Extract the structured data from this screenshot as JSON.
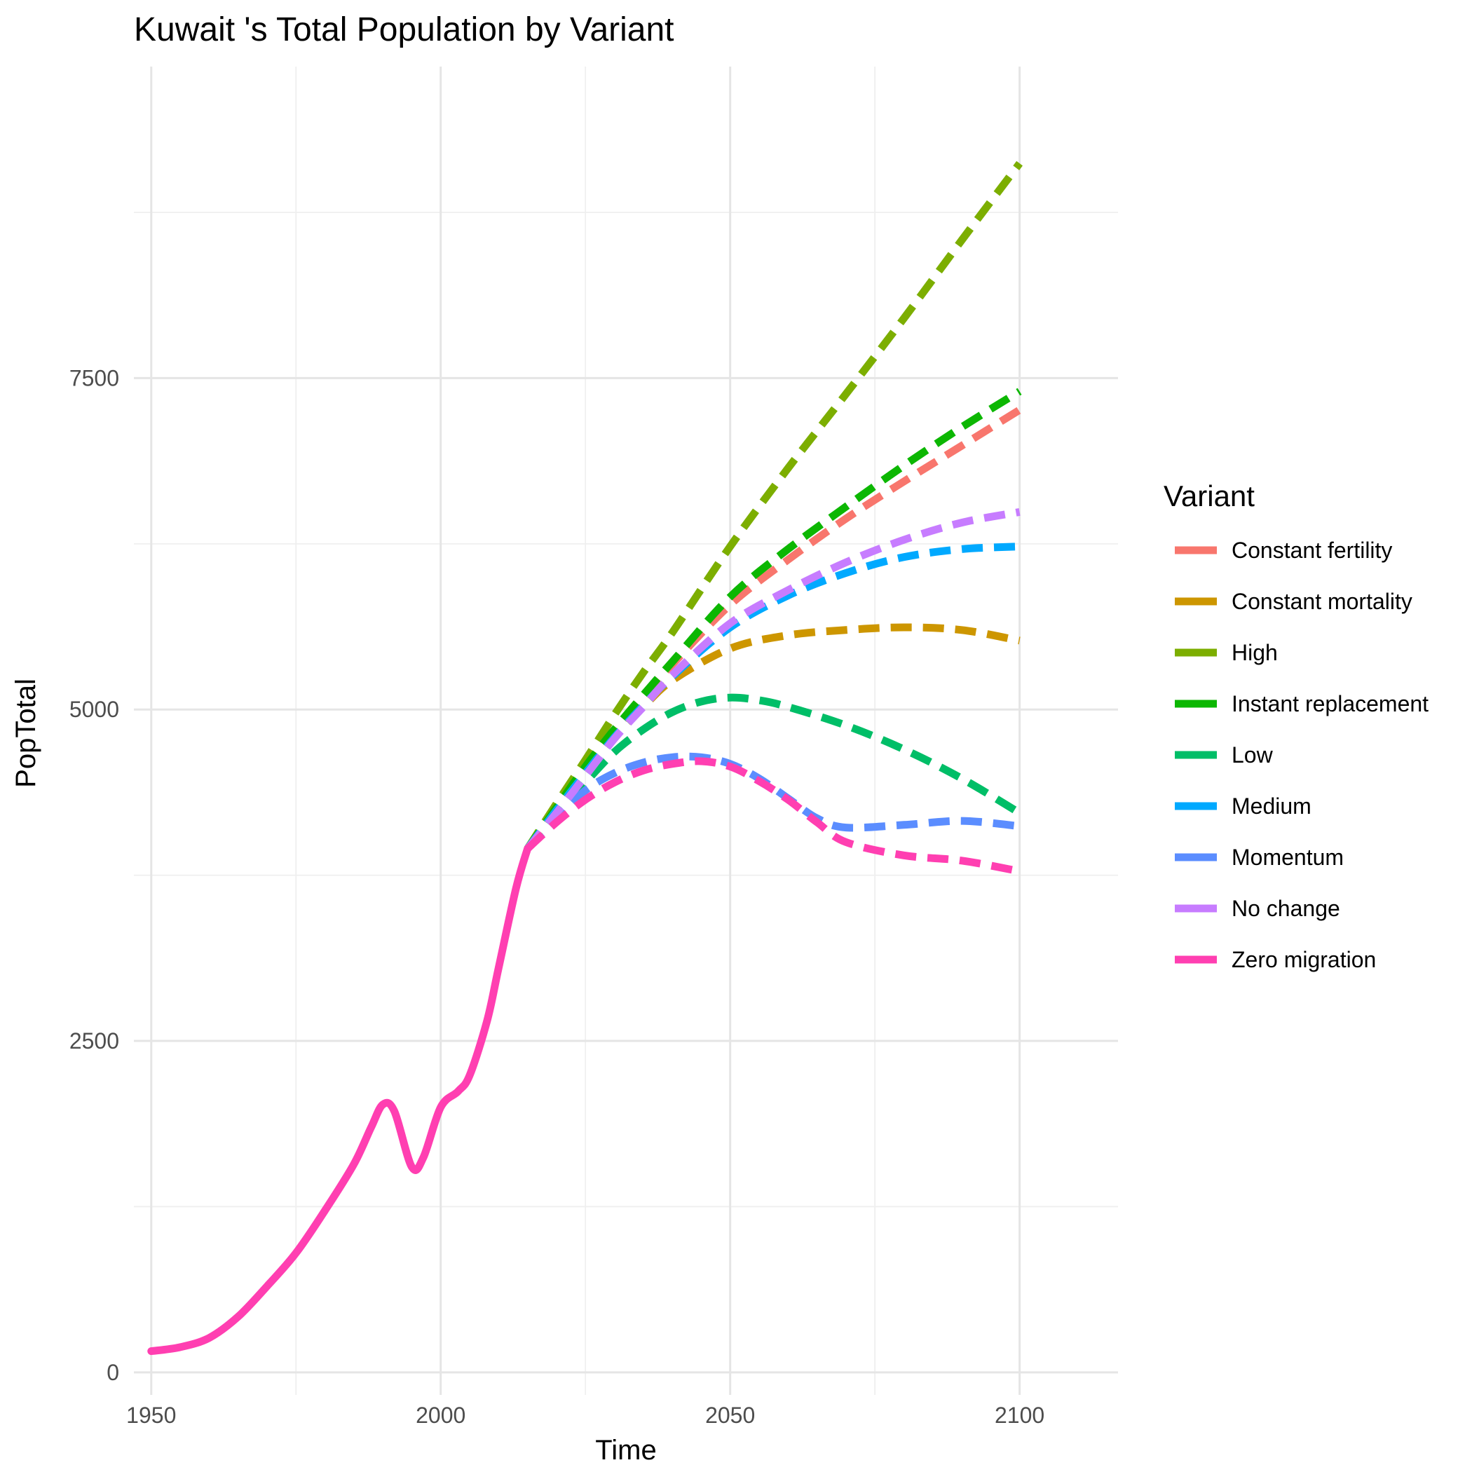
{
  "chart_data": {
    "type": "line",
    "title": "Kuwait 's Total Population by Variant",
    "xlabel": "Time",
    "ylabel": "PopTotal",
    "xlim": [
      1947,
      2117
    ],
    "ylim": [
      -170,
      9850
    ],
    "x_ticks": [
      1950,
      2000,
      2050,
      2100
    ],
    "x_tick_labels": [
      "1950",
      "2000",
      "2050",
      "2100"
    ],
    "y_ticks": [
      0,
      2500,
      5000,
      7500
    ],
    "y_tick_labels": [
      "0",
      "2500",
      "5000",
      "7500"
    ],
    "grid": true,
    "legend": {
      "title": "Variant",
      "placement": "right"
    },
    "historical": {
      "name": "Zero migration",
      "x": [
        1950,
        1955,
        1960,
        1965,
        1970,
        1975,
        1980,
        1985,
        1988,
        1990,
        1992,
        1995,
        1997,
        2000,
        2003,
        2005,
        2008,
        2010,
        2013,
        2015
      ],
      "y": [
        160,
        190,
        260,
        420,
        650,
        900,
        1220,
        1570,
        1850,
        2020,
        1970,
        1550,
        1620,
        2000,
        2120,
        2240,
        2650,
        3050,
        3650,
        3950
      ]
    },
    "series": [
      {
        "name": "Constant fertility",
        "color": "#F8766D",
        "x": [
          2015,
          2020,
          2025,
          2030,
          2035,
          2040,
          2050,
          2060,
          2070,
          2080,
          2090,
          2100
        ],
        "y": [
          3950,
          4250,
          4560,
          4840,
          5090,
          5340,
          5790,
          6130,
          6440,
          6720,
          6990,
          7260
        ]
      },
      {
        "name": "Constant mortality",
        "color": "#CD9600",
        "x": [
          2015,
          2020,
          2025,
          2030,
          2035,
          2040,
          2050,
          2060,
          2070,
          2080,
          2090,
          2100
        ],
        "y": [
          3950,
          4250,
          4540,
          4800,
          5020,
          5220,
          5460,
          5560,
          5600,
          5620,
          5600,
          5520
        ]
      },
      {
        "name": "High",
        "color": "#7CAE00",
        "x": [
          2015,
          2020,
          2025,
          2030,
          2035,
          2040,
          2050,
          2060,
          2070,
          2080,
          2090,
          2100
        ],
        "y": [
          3950,
          4290,
          4620,
          4960,
          5280,
          5580,
          6230,
          6820,
          7380,
          7950,
          8540,
          9120
        ]
      },
      {
        "name": "Instant replacement",
        "color": "#0CB702",
        "x": [
          2015,
          2020,
          2025,
          2030,
          2035,
          2040,
          2050,
          2060,
          2070,
          2080,
          2090,
          2100
        ],
        "y": [
          3950,
          4260,
          4570,
          4850,
          5110,
          5360,
          5850,
          6210,
          6530,
          6840,
          7130,
          7400
        ]
      },
      {
        "name": "Low",
        "color": "#00BE67",
        "x": [
          2015,
          2020,
          2025,
          2030,
          2035,
          2040,
          2045,
          2050,
          2055,
          2060,
          2070,
          2080,
          2090,
          2100
        ],
        "y": [
          3950,
          4200,
          4450,
          4680,
          4850,
          4980,
          5060,
          5090,
          5070,
          5020,
          4880,
          4700,
          4480,
          4220
        ]
      },
      {
        "name": "Medium",
        "color": "#00A9FF",
        "x": [
          2015,
          2020,
          2025,
          2030,
          2035,
          2040,
          2050,
          2060,
          2070,
          2080,
          2090,
          2100
        ],
        "y": [
          3950,
          4240,
          4520,
          4790,
          5030,
          5250,
          5620,
          5860,
          6030,
          6150,
          6210,
          6230
        ]
      },
      {
        "name": "Momentum",
        "color": "#5B8DFF",
        "x": [
          2015,
          2020,
          2025,
          2030,
          2035,
          2040,
          2045,
          2050,
          2055,
          2060,
          2065,
          2070,
          2080,
          2090,
          2100
        ],
        "y": [
          3950,
          4180,
          4390,
          4520,
          4600,
          4640,
          4640,
          4590,
          4480,
          4330,
          4180,
          4110,
          4130,
          4160,
          4120
        ]
      },
      {
        "name": "No change",
        "color": "#C77CFF",
        "x": [
          2015,
          2020,
          2025,
          2030,
          2035,
          2040,
          2050,
          2060,
          2070,
          2080,
          2090,
          2100
        ],
        "y": [
          3950,
          4220,
          4500,
          4780,
          5020,
          5260,
          5650,
          5900,
          6110,
          6280,
          6410,
          6490
        ]
      },
      {
        "name": "Zero migration",
        "color": "#FF3FB1",
        "x": [
          2015,
          2020,
          2025,
          2030,
          2035,
          2040,
          2045,
          2050,
          2055,
          2060,
          2065,
          2070,
          2080,
          2090,
          2100
        ],
        "y": [
          3950,
          4150,
          4320,
          4450,
          4540,
          4590,
          4610,
          4570,
          4460,
          4320,
          4150,
          4000,
          3900,
          3860,
          3780
        ]
      }
    ]
  }
}
